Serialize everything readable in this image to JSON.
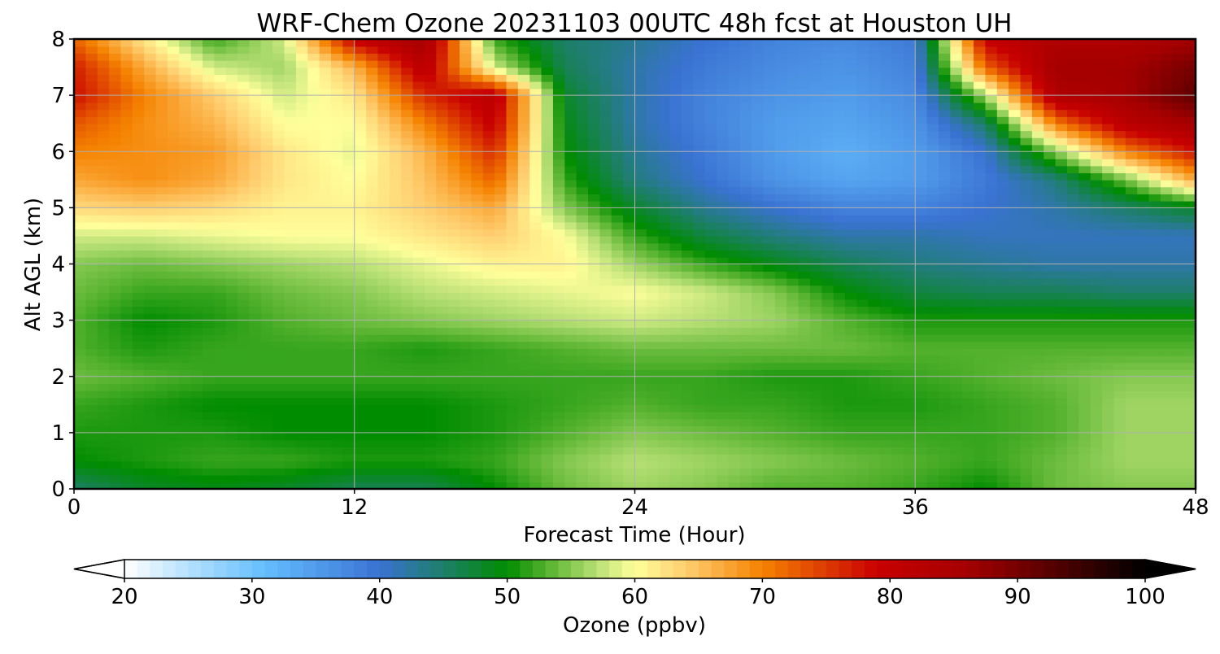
{
  "chart_data": {
    "type": "heatmap",
    "title": "WRF-Chem Ozone  20231103 00UTC 48h fcst at Houston UH",
    "xlabel": "Forecast Time (Hour)",
    "ylabel": "Alt AGL (km)",
    "xlim": [
      0,
      48
    ],
    "ylim": [
      0,
      8
    ],
    "xticks": [
      0,
      12,
      24,
      36,
      48
    ],
    "yticks": [
      0,
      1,
      2,
      3,
      4,
      5,
      6,
      7,
      8
    ],
    "grid": true,
    "x": [
      0,
      3,
      6,
      9,
      12,
      15,
      18,
      21,
      24,
      27,
      30,
      33,
      36,
      39,
      42,
      45,
      48
    ],
    "y": [
      0,
      0.5,
      1,
      1.5,
      2,
      2.5,
      3,
      3.5,
      4,
      4.5,
      5,
      5.5,
      6,
      6.5,
      7,
      7.5,
      8
    ],
    "z": [
      [
        45,
        48,
        49,
        48,
        46,
        46,
        50,
        54,
        56,
        55,
        53,
        53,
        52,
        50,
        54,
        55,
        55
      ],
      [
        50,
        51,
        52,
        52,
        51,
        51,
        52,
        55,
        57,
        56,
        55,
        54,
        53,
        52,
        54,
        56,
        56
      ],
      [
        51,
        51,
        51,
        50,
        50,
        50,
        51,
        53,
        55,
        54,
        53,
        52,
        52,
        52,
        53,
        56,
        56
      ],
      [
        52,
        51,
        50,
        50,
        50,
        50,
        51,
        52,
        53,
        52,
        52,
        51,
        51,
        52,
        53,
        56,
        56
      ],
      [
        54,
        53,
        52,
        52,
        52,
        52,
        52,
        52,
        52,
        52,
        51,
        51,
        52,
        53,
        54,
        55,
        55
      ],
      [
        53,
        51,
        52,
        52,
        52,
        51,
        52,
        53,
        54,
        54,
        54,
        54,
        53,
        53,
        53,
        53,
        53
      ],
      [
        53,
        50,
        51,
        53,
        54,
        55,
        56,
        57,
        58,
        57,
        56,
        53,
        51,
        51,
        51,
        51,
        51
      ],
      [
        54,
        52,
        52,
        54,
        55,
        57,
        58,
        59,
        60,
        58,
        55,
        50,
        47,
        46,
        46,
        45,
        45
      ],
      [
        55,
        54,
        55,
        56,
        57,
        59,
        61,
        61,
        56,
        52,
        49,
        46,
        44,
        43,
        42,
        42,
        42
      ],
      [
        58,
        58,
        59,
        60,
        60,
        62,
        64,
        60,
        52,
        47,
        44,
        42,
        42,
        41,
        41,
        41,
        41
      ],
      [
        63,
        64,
        63,
        61,
        61,
        64,
        67,
        55,
        48,
        43,
        40,
        38,
        38,
        40,
        42,
        45,
        48
      ],
      [
        67,
        69,
        67,
        62,
        60,
        65,
        72,
        52,
        44,
        40,
        36,
        34,
        35,
        39,
        44,
        54,
        67
      ],
      [
        70,
        69,
        68,
        62,
        59,
        66,
        76,
        50,
        43,
        39,
        35,
        33,
        35,
        40,
        55,
        70,
        78
      ],
      [
        73,
        69,
        66,
        60,
        60,
        70,
        80,
        49,
        42,
        38,
        35,
        34,
        36,
        45,
        70,
        82,
        86
      ],
      [
        78,
        70,
        64,
        58,
        62,
        76,
        82,
        48,
        42,
        38,
        36,
        35,
        37,
        56,
        84,
        86,
        92
      ],
      [
        77,
        67,
        58,
        56,
        66,
        82,
        58,
        46,
        42,
        39,
        37,
        36,
        38,
        72,
        86,
        86,
        90
      ],
      [
        72,
        62,
        52,
        58,
        80,
        86,
        52,
        45,
        43,
        40,
        38,
        37,
        39,
        80,
        84,
        84,
        86
      ]
    ],
    "colorbar": {
      "label": "Ozone  (ppbv)",
      "min": 20,
      "max": 100,
      "ticks": [
        20,
        30,
        40,
        50,
        60,
        70,
        80,
        90,
        100
      ],
      "extend": "both",
      "palette": [
        "#ffffff",
        "#b4e1ff",
        "#64beff",
        "#3a72d2",
        "#008c00",
        "#53b12d",
        "#b8e075",
        "#ffff9b",
        "#ffce70",
        "#f58200",
        "#c80000",
        "#a50000",
        "#000000"
      ],
      "palette_values": [
        20,
        25,
        31,
        40,
        50,
        53,
        57,
        60,
        64,
        70,
        79,
        86,
        100
      ]
    }
  }
}
